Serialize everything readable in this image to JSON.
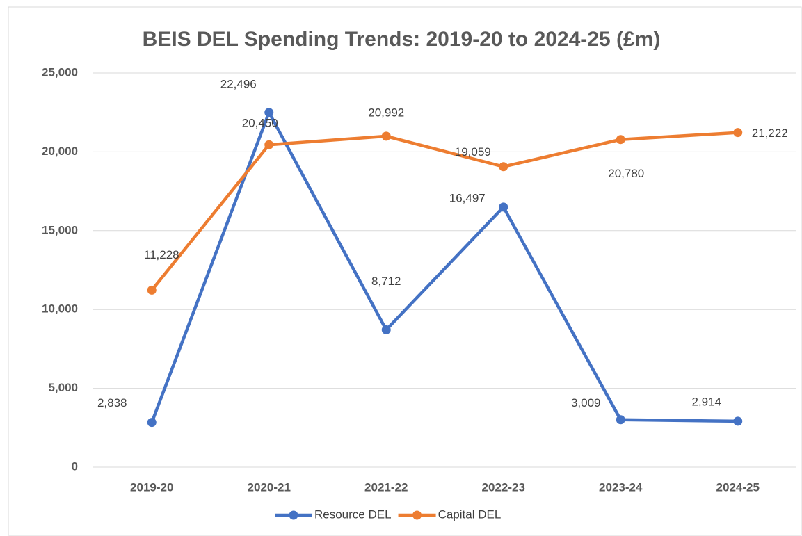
{
  "chart_data": {
    "type": "line",
    "title": "BEIS DEL Spending Trends: 2019-20 to 2024-25 (£m)",
    "categories": [
      "2019-20",
      "2020-21",
      "2021-22",
      "2022-23",
      "2023-24",
      "2024-25"
    ],
    "series": [
      {
        "name": "Resource DEL",
        "color": "#4472c4",
        "values": [
          2838,
          22496,
          8712,
          16497,
          3009,
          2914
        ],
        "value_labels": [
          "2,838",
          "22,496",
          "8,712",
          "16,497",
          "3,009",
          "2,914"
        ]
      },
      {
        "name": "Capital DEL",
        "color": "#ed7d31",
        "values": [
          11228,
          20450,
          20992,
          19059,
          20780,
          21222
        ],
        "value_labels": [
          "11,228",
          "20,450",
          "20,992",
          "19,059",
          "20,780",
          "21,222"
        ]
      }
    ],
    "ylim": [
      0,
      25000
    ],
    "yticks": [
      0,
      {
        "value": 5000,
        "label": "5,000"
      },
      {
        "value": 10000,
        "label": "10,000"
      },
      {
        "value": 15000,
        "label": "15,000"
      },
      {
        "value": 20000,
        "label": "20,000"
      },
      {
        "value": 25000,
        "label": "25,000"
      }
    ],
    "grid": true,
    "legend": "bottom"
  }
}
